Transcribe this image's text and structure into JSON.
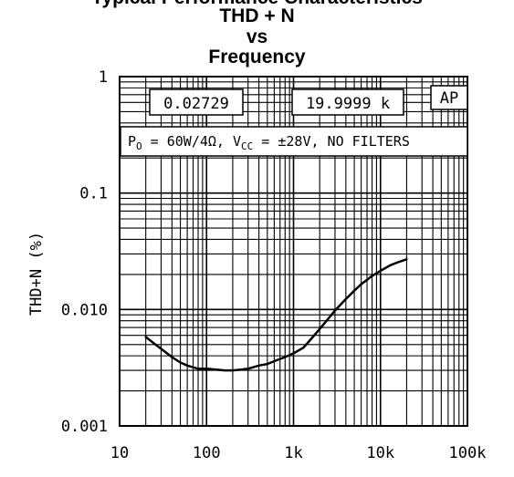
{
  "title_lines": [
    "Typical Performance Characteristics",
    "THD + N",
    "vs",
    "Frequency"
  ],
  "chart_data": {
    "type": "line",
    "title": "THD + N vs Frequency",
    "xlabel": "",
    "ylabel": "THD+N (%)",
    "x_scale": "log",
    "y_scale": "log",
    "xlim": [
      10,
      100000
    ],
    "ylim": [
      0.001,
      1
    ],
    "x_ticks": [
      10,
      100,
      1000,
      10000,
      100000
    ],
    "x_tick_labels": [
      "10",
      "100",
      "1k",
      "10k",
      "100k"
    ],
    "y_ticks": [
      0.001,
      0.01,
      0.1,
      1
    ],
    "y_tick_labels": [
      "0.001",
      "0.010",
      "0.1",
      "1"
    ],
    "grid": true,
    "series": [
      {
        "x": [
          20,
          25,
          30,
          40,
          50,
          60,
          80,
          100,
          130,
          160,
          200,
          250,
          300,
          400,
          500,
          600,
          800,
          1000,
          1300,
          1600,
          2000,
          2500,
          3000,
          4000,
          5000,
          6000,
          8000,
          10000,
          13000,
          16000,
          20000
        ],
        "y": [
          0.0058,
          0.0051,
          0.0046,
          0.0039,
          0.0035,
          0.0033,
          0.0031,
          0.0031,
          0.00305,
          0.003,
          0.003,
          0.00305,
          0.0031,
          0.0033,
          0.0034,
          0.0036,
          0.0039,
          0.0042,
          0.0047,
          0.0056,
          0.0068,
          0.0083,
          0.0098,
          0.0123,
          0.0145,
          0.0165,
          0.0194,
          0.0215,
          0.024,
          0.0255,
          0.027
        ]
      }
    ],
    "readouts": [
      "0.02729",
      "19.9999 k"
    ],
    "logo": "AP",
    "conditions": {
      "po_main": "P",
      "po_sub": "O",
      "po_value": " = 60W/4Ω, V",
      "vcc_sub": "CC",
      "vcc_value": " = ±28V, NO FILTERS"
    }
  }
}
